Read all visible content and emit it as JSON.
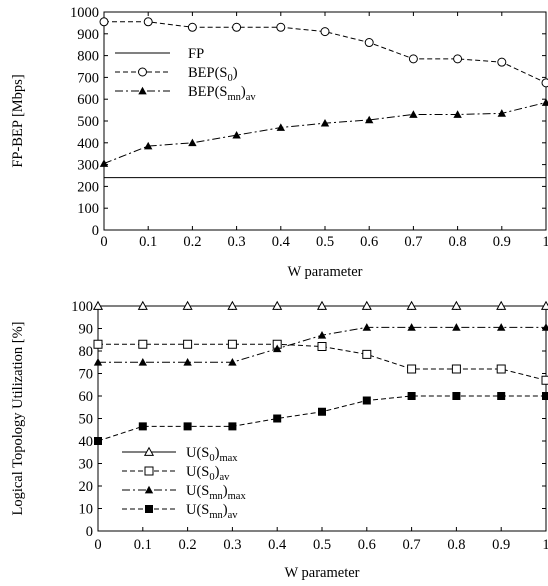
{
  "chart_data": [
    {
      "type": "line",
      "xlabel": "W parameter",
      "ylabel": "FP-BEP [Mbps]",
      "xlim": [
        0,
        1
      ],
      "ylim": [
        0,
        1000
      ],
      "x": [
        0,
        0.1,
        0.2,
        0.3,
        0.4,
        0.5,
        0.6,
        0.7,
        0.8,
        0.9,
        1
      ],
      "x_tick_labels": [
        "0",
        "0.1",
        "0.2",
        "0.3",
        "0.4",
        "0.5",
        "0.6",
        "0.7",
        "0.8",
        "0.9",
        "1"
      ],
      "y_ticks": [
        0,
        100,
        200,
        300,
        400,
        500,
        600,
        700,
        800,
        900,
        1000
      ],
      "y_tick_labels": [
        "0",
        "100",
        "200",
        "300",
        "400",
        "500",
        "600",
        "700",
        "800",
        "900",
        "1000"
      ],
      "grid": false,
      "legend_position": "left",
      "series": [
        {
          "name": "FP",
          "legend": {
            "main": "FP",
            "sub": "",
            "tail": ""
          },
          "line": "solid",
          "marker": "none",
          "color": "#000000",
          "values": [
            240,
            240,
            240,
            240,
            240,
            240,
            240,
            240,
            240,
            240,
            240
          ]
        },
        {
          "name": "BEP(S0)",
          "legend": {
            "main": "BEP(S",
            "sub": "0",
            "tail": ")"
          },
          "line": "dashed",
          "marker": "open-circle",
          "color": "#000000",
          "values": [
            955,
            955,
            930,
            930,
            930,
            910,
            860,
            785,
            785,
            770,
            675
          ]
        },
        {
          "name": "BEP(Smn)av",
          "legend": {
            "main": "BEP(S",
            "sub": "mn",
            "tail": ")",
            "tail_sub": "av"
          },
          "line": "dashdot",
          "marker": "filled-triangle",
          "color": "#000000",
          "values": [
            305,
            385,
            400,
            435,
            470,
            490,
            505,
            530,
            530,
            535,
            585
          ]
        }
      ]
    },
    {
      "type": "line",
      "xlabel": "W parameter",
      "ylabel": "Logical Topology Utilization [%]",
      "xlim": [
        0,
        1
      ],
      "ylim": [
        0,
        100
      ],
      "x": [
        0,
        0.1,
        0.2,
        0.3,
        0.4,
        0.5,
        0.6,
        0.7,
        0.8,
        0.9,
        1
      ],
      "x_tick_labels": [
        "0",
        "0.1",
        "0.2",
        "0.3",
        "0.4",
        "0.5",
        "0.6",
        "0.7",
        "0.8",
        "0.9",
        "1"
      ],
      "y_ticks": [
        0,
        10,
        20,
        30,
        40,
        50,
        60,
        70,
        80,
        90,
        100
      ],
      "y_tick_labels": [
        "0",
        "10",
        "20",
        "30",
        "40",
        "50",
        "60",
        "70",
        "80",
        "90",
        "100"
      ],
      "grid": false,
      "legend_position": "bottom-left",
      "series": [
        {
          "name": "U(S0)max",
          "legend": {
            "main": "U(S",
            "sub": "0",
            "tail": ")",
            "tail_sub": "max"
          },
          "line": "solid",
          "marker": "open-triangle",
          "color": "#000000",
          "values": [
            100,
            100,
            100,
            100,
            100,
            100,
            100,
            100,
            100,
            100,
            100
          ]
        },
        {
          "name": "U(S0)av",
          "legend": {
            "main": "U(S",
            "sub": "0",
            "tail": ")",
            "tail_sub": "av"
          },
          "line": "dashed",
          "marker": "open-square",
          "color": "#000000",
          "values": [
            83,
            83,
            83,
            83,
            83,
            82,
            78.5,
            72,
            72,
            72,
            67
          ]
        },
        {
          "name": "U(Smn)max",
          "legend": {
            "main": "U(S",
            "sub": "mn",
            "tail": ")",
            "tail_sub": "max"
          },
          "line": "dashdot",
          "marker": "filled-triangle",
          "color": "#000000",
          "values": [
            75,
            75,
            75,
            75,
            81,
            87,
            90.5,
            90.5,
            90.5,
            90.5,
            90.5
          ]
        },
        {
          "name": "U(Smn)av",
          "legend": {
            "main": "U(S",
            "sub": "mn",
            "tail": ")",
            "tail_sub": "av"
          },
          "line": "dashed",
          "marker": "filled-square",
          "color": "#000000",
          "values": [
            40,
            46.5,
            46.5,
            46.5,
            50,
            53,
            58,
            60,
            60,
            60,
            60
          ]
        }
      ]
    }
  ]
}
